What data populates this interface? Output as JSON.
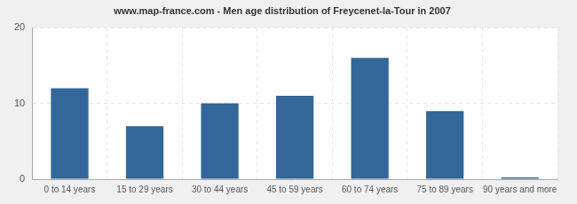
{
  "chart_data": {
    "type": "bar",
    "title": "www.map-france.com - Men age distribution of Freycenet-la-Tour in 2007",
    "categories": [
      "0 to 14 years",
      "15 to 29 years",
      "30 to 44 years",
      "45 to 59 years",
      "60 to 74 years",
      "75 to 89 years",
      "90 years and more"
    ],
    "values": [
      12,
      7,
      10,
      11,
      16,
      9,
      0
    ],
    "color": "#336699",
    "ylim": [
      0,
      20
    ],
    "yticks": [
      0,
      10,
      20
    ],
    "grid": true
  }
}
